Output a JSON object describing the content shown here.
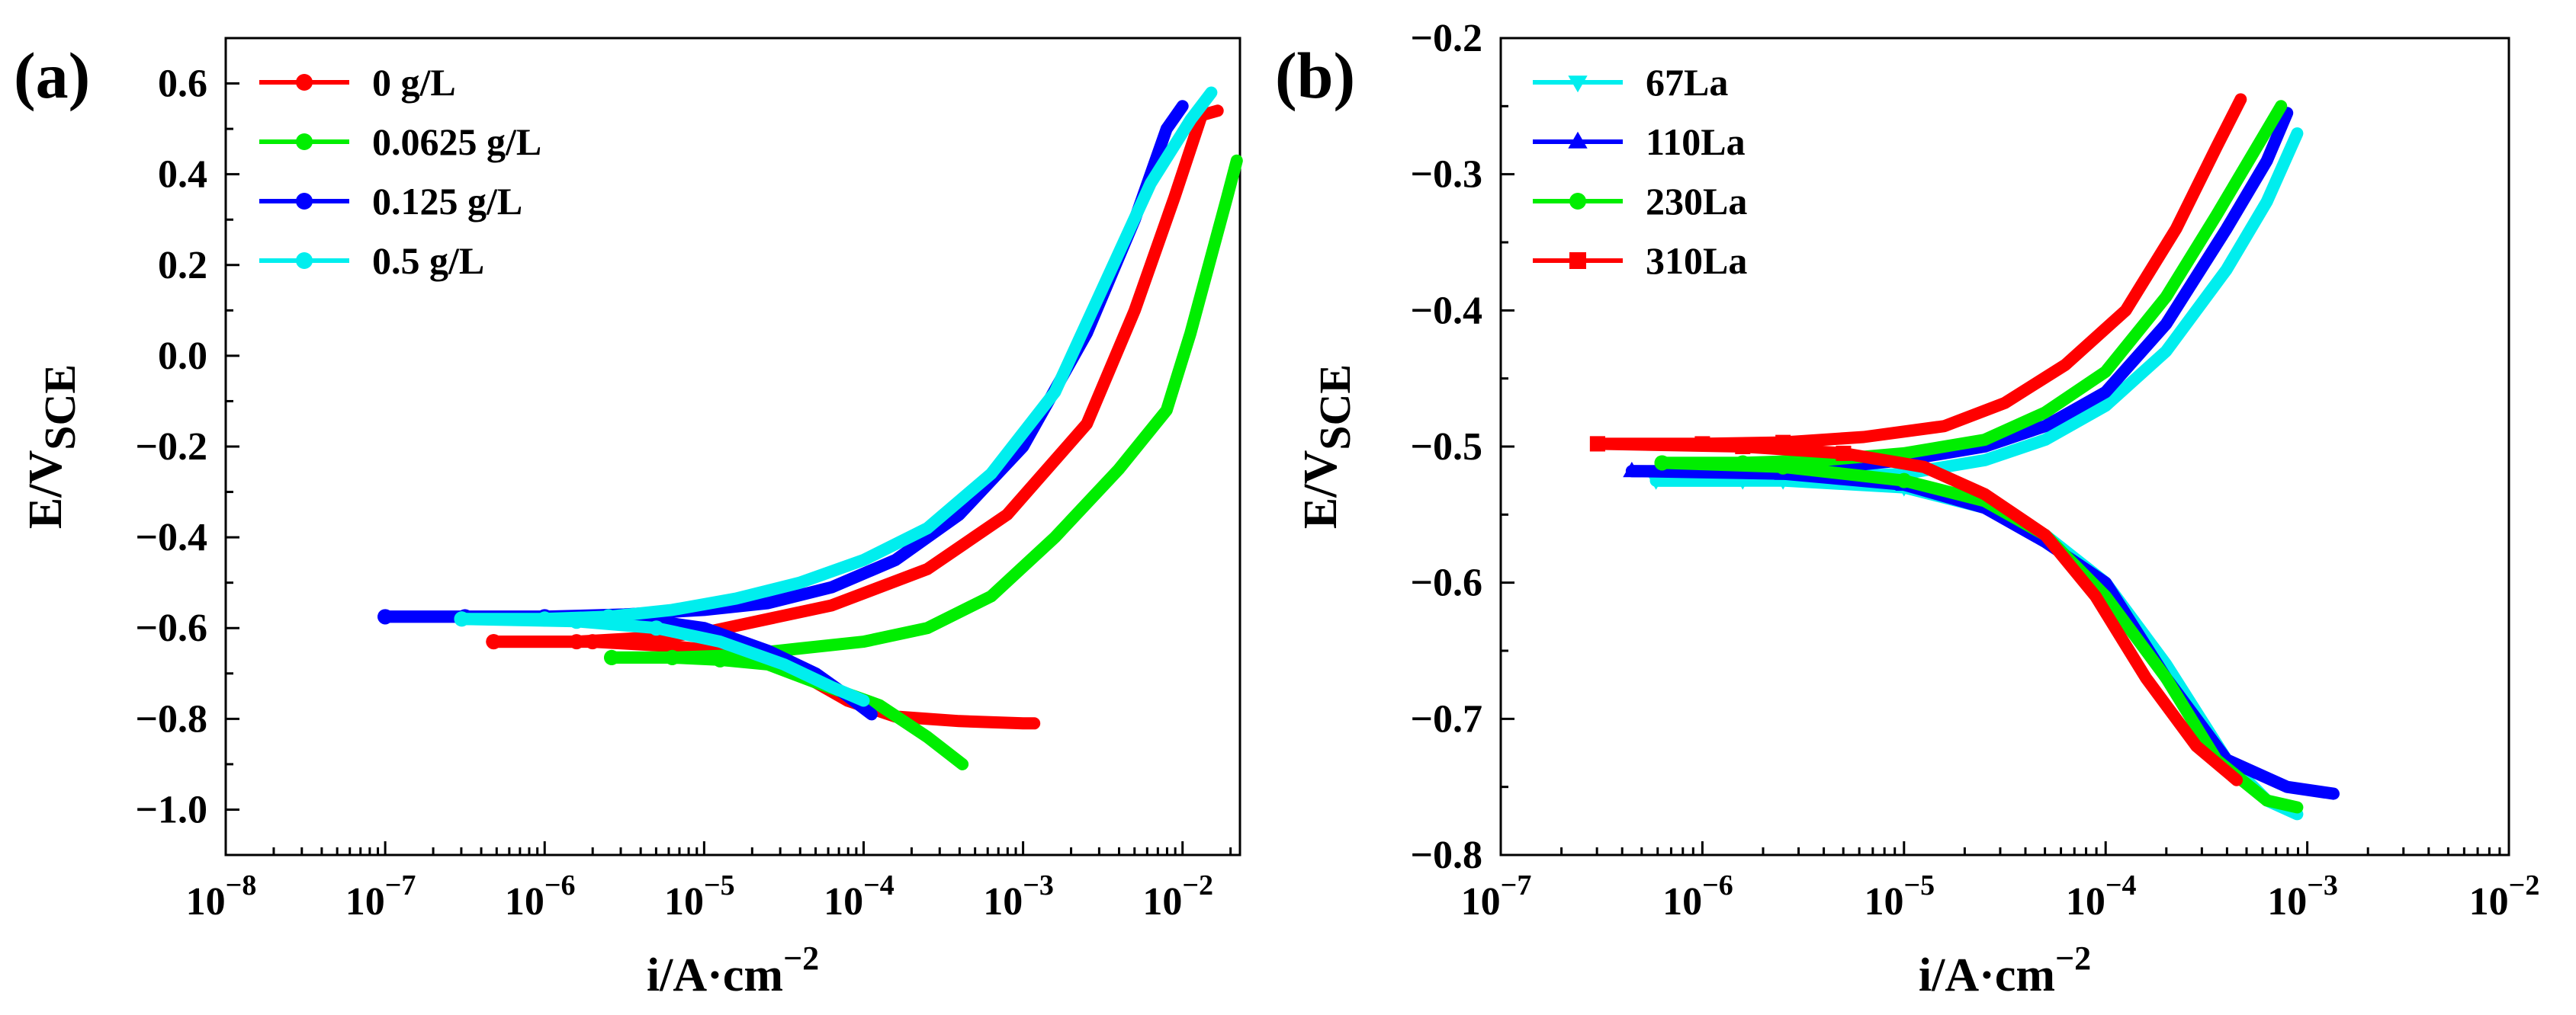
{
  "chart_data": [
    {
      "type": "line",
      "panel_label": "(a)",
      "xlabel_main": "i/A·cm",
      "xlabel_sup": "−2",
      "ylabel_main": "E/V",
      "ylabel_sub": "SCE",
      "xscale": "log",
      "xlim_exp": [
        -8,
        -1.64
      ],
      "ylim": [
        -1.1,
        0.7
      ],
      "xticks": [
        {
          "exp": -8,
          "base": "10",
          "sup": "−8"
        },
        {
          "exp": -7,
          "base": "10",
          "sup": "−7"
        },
        {
          "exp": -6,
          "base": "10",
          "sup": "−6"
        },
        {
          "exp": -5,
          "base": "10",
          "sup": "−5"
        },
        {
          "exp": -4,
          "base": "10",
          "sup": "−4"
        },
        {
          "exp": -3,
          "base": "10",
          "sup": "−3"
        },
        {
          "exp": -2,
          "base": "10",
          "sup": "−2"
        }
      ],
      "yticks": [
        {
          "value": 0.6,
          "label": "0.6"
        },
        {
          "value": 0.4,
          "label": "0.4"
        },
        {
          "value": 0.2,
          "label": "0.2"
        },
        {
          "value": 0.0,
          "label": "0.0"
        },
        {
          "value": -0.2,
          "label": "−0.2"
        },
        {
          "value": -0.4,
          "label": "−0.4"
        },
        {
          "value": -0.6,
          "label": "−0.6"
        },
        {
          "value": -0.8,
          "label": "−0.8"
        },
        {
          "value": -1.0,
          "label": "−1.0"
        }
      ],
      "legend_position": "top-left",
      "series": [
        {
          "name": "0 g/L",
          "color": "#ff0000",
          "marker": "circle",
          "anodic": [
            [
              -6.32,
              -0.63
            ],
            [
              -5.8,
              -0.63
            ],
            [
              -5.3,
              -0.62
            ],
            [
              -5.0,
              -0.61
            ],
            [
              -4.6,
              -0.58
            ],
            [
              -4.2,
              -0.55
            ],
            [
              -3.6,
              -0.47
            ],
            [
              -3.1,
              -0.35
            ],
            [
              -2.6,
              -0.15
            ],
            [
              -2.3,
              0.1
            ],
            [
              -2.05,
              0.35
            ],
            [
              -1.88,
              0.53
            ],
            [
              -1.78,
              0.54
            ]
          ],
          "cathodic": [
            [
              -6.32,
              -0.63
            ],
            [
              -5.7,
              -0.63
            ],
            [
              -5.2,
              -0.64
            ],
            [
              -4.8,
              -0.655
            ],
            [
              -4.4,
              -0.7
            ],
            [
              -4.1,
              -0.76
            ],
            [
              -3.8,
              -0.795
            ],
            [
              -3.4,
              -0.805
            ],
            [
              -3.0,
              -0.81
            ],
            [
              -2.93,
              -0.81
            ]
          ]
        },
        {
          "name": "0.0625 g/L",
          "color": "#00ee00",
          "marker": "circle",
          "anodic": [
            [
              -5.58,
              -0.665
            ],
            [
              -5.2,
              -0.665
            ],
            [
              -4.8,
              -0.66
            ],
            [
              -4.4,
              -0.645
            ],
            [
              -4.0,
              -0.63
            ],
            [
              -3.6,
              -0.6
            ],
            [
              -3.2,
              -0.53
            ],
            [
              -2.8,
              -0.4
            ],
            [
              -2.4,
              -0.25
            ],
            [
              -2.1,
              -0.12
            ],
            [
              -1.95,
              0.05
            ],
            [
              -1.82,
              0.22
            ],
            [
              -1.72,
              0.35
            ],
            [
              -1.66,
              0.43
            ]
          ],
          "cathodic": [
            [
              -5.58,
              -0.665
            ],
            [
              -5.2,
              -0.665
            ],
            [
              -4.9,
              -0.67
            ],
            [
              -4.6,
              -0.68
            ],
            [
              -4.3,
              -0.72
            ],
            [
              -3.9,
              -0.77
            ],
            [
              -3.6,
              -0.84
            ],
            [
              -3.38,
              -0.9
            ]
          ]
        },
        {
          "name": "0.125 g/L",
          "color": "#0000ff",
          "marker": "circle",
          "anodic": [
            [
              -7.0,
              -0.575
            ],
            [
              -6.5,
              -0.575
            ],
            [
              -6.0,
              -0.575
            ],
            [
              -5.5,
              -0.57
            ],
            [
              -5.0,
              -0.56
            ],
            [
              -4.6,
              -0.545
            ],
            [
              -4.2,
              -0.51
            ],
            [
              -3.8,
              -0.45
            ],
            [
              -3.4,
              -0.35
            ],
            [
              -3.0,
              -0.2
            ],
            [
              -2.6,
              0.05
            ],
            [
              -2.3,
              0.3
            ],
            [
              -2.1,
              0.5
            ],
            [
              -2.0,
              0.55
            ]
          ],
          "cathodic": [
            [
              -7.0,
              -0.575
            ],
            [
              -6.0,
              -0.575
            ],
            [
              -5.4,
              -0.58
            ],
            [
              -5.0,
              -0.6
            ],
            [
              -4.6,
              -0.65
            ],
            [
              -4.3,
              -0.7
            ],
            [
              -4.1,
              -0.75
            ],
            [
              -3.95,
              -0.79
            ]
          ]
        },
        {
          "name": "0.5 g/L",
          "color": "#00eeee",
          "marker": "circle",
          "anodic": [
            [
              -6.52,
              -0.58
            ],
            [
              -6.0,
              -0.58
            ],
            [
              -5.6,
              -0.575
            ],
            [
              -5.2,
              -0.56
            ],
            [
              -4.8,
              -0.535
            ],
            [
              -4.4,
              -0.5
            ],
            [
              -4.0,
              -0.45
            ],
            [
              -3.6,
              -0.38
            ],
            [
              -3.2,
              -0.26
            ],
            [
              -2.8,
              -0.08
            ],
            [
              -2.5,
              0.15
            ],
            [
              -2.2,
              0.38
            ],
            [
              -1.95,
              0.52
            ],
            [
              -1.82,
              0.58
            ]
          ],
          "cathodic": [
            [
              -6.52,
              -0.58
            ],
            [
              -5.8,
              -0.585
            ],
            [
              -5.3,
              -0.6
            ],
            [
              -4.9,
              -0.63
            ],
            [
              -4.5,
              -0.68
            ],
            [
              -4.2,
              -0.73
            ],
            [
              -4.0,
              -0.76
            ]
          ]
        }
      ]
    },
    {
      "type": "line",
      "panel_label": "(b)",
      "xlabel_main": "i/A·cm",
      "xlabel_sup": "−2",
      "ylabel_main": "E/V",
      "ylabel_sub": "SCE",
      "xscale": "log",
      "xlim_exp": [
        -7,
        -2
      ],
      "ylim": [
        -0.8,
        -0.2
      ],
      "xticks": [
        {
          "exp": -7,
          "base": "10",
          "sup": "−7"
        },
        {
          "exp": -6,
          "base": "10",
          "sup": "−6"
        },
        {
          "exp": -5,
          "base": "10",
          "sup": "−5"
        },
        {
          "exp": -4,
          "base": "10",
          "sup": "−4"
        },
        {
          "exp": -3,
          "base": "10",
          "sup": "−3"
        },
        {
          "exp": -2,
          "base": "10",
          "sup": "−2"
        }
      ],
      "yticks": [
        {
          "value": -0.2,
          "label": "−0.2"
        },
        {
          "value": -0.3,
          "label": "−0.3"
        },
        {
          "value": -0.4,
          "label": "−0.4"
        },
        {
          "value": -0.5,
          "label": "−0.5"
        },
        {
          "value": -0.6,
          "label": "−0.6"
        },
        {
          "value": -0.7,
          "label": "−0.7"
        },
        {
          "value": -0.8,
          "label": "−0.8"
        }
      ],
      "legend_position": "top-left",
      "series": [
        {
          "name": "67La",
          "color": "#00eeee",
          "marker": "triangle-down",
          "anodic": [
            [
              -6.23,
              -0.525
            ],
            [
              -5.8,
              -0.525
            ],
            [
              -5.4,
              -0.523
            ],
            [
              -5.0,
              -0.52
            ],
            [
              -4.6,
              -0.51
            ],
            [
              -4.3,
              -0.495
            ],
            [
              -4.0,
              -0.47
            ],
            [
              -3.7,
              -0.43
            ],
            [
              -3.4,
              -0.37
            ],
            [
              -3.2,
              -0.32
            ],
            [
              -3.05,
              -0.27
            ]
          ],
          "cathodic": [
            [
              -6.23,
              -0.525
            ],
            [
              -5.6,
              -0.525
            ],
            [
              -5.0,
              -0.53
            ],
            [
              -4.6,
              -0.545
            ],
            [
              -4.3,
              -0.565
            ],
            [
              -4.0,
              -0.6
            ],
            [
              -3.7,
              -0.66
            ],
            [
              -3.4,
              -0.73
            ],
            [
              -3.2,
              -0.76
            ],
            [
              -3.05,
              -0.77
            ]
          ]
        },
        {
          "name": "110La",
          "color": "#0000ff",
          "marker": "triangle-up",
          "anodic": [
            [
              -6.35,
              -0.518
            ],
            [
              -5.8,
              -0.518
            ],
            [
              -5.4,
              -0.516
            ],
            [
              -5.0,
              -0.51
            ],
            [
              -4.6,
              -0.5
            ],
            [
              -4.3,
              -0.485
            ],
            [
              -4.0,
              -0.46
            ],
            [
              -3.7,
              -0.41
            ],
            [
              -3.4,
              -0.34
            ],
            [
              -3.2,
              -0.29
            ],
            [
              -3.1,
              -0.255
            ]
          ],
          "cathodic": [
            [
              -6.35,
              -0.518
            ],
            [
              -5.6,
              -0.52
            ],
            [
              -5.0,
              -0.528
            ],
            [
              -4.6,
              -0.545
            ],
            [
              -4.3,
              -0.57
            ],
            [
              -4.0,
              -0.6
            ],
            [
              -3.7,
              -0.67
            ],
            [
              -3.4,
              -0.73
            ],
            [
              -3.1,
              -0.75
            ],
            [
              -2.87,
              -0.755
            ]
          ]
        },
        {
          "name": "230La",
          "color": "#00ee00",
          "marker": "circle",
          "anodic": [
            [
              -6.2,
              -0.512
            ],
            [
              -5.8,
              -0.512
            ],
            [
              -5.4,
              -0.51
            ],
            [
              -5.0,
              -0.505
            ],
            [
              -4.6,
              -0.495
            ],
            [
              -4.3,
              -0.475
            ],
            [
              -4.0,
              -0.445
            ],
            [
              -3.7,
              -0.39
            ],
            [
              -3.45,
              -0.33
            ],
            [
              -3.25,
              -0.28
            ],
            [
              -3.13,
              -0.25
            ]
          ],
          "cathodic": [
            [
              -6.2,
              -0.512
            ],
            [
              -5.6,
              -0.515
            ],
            [
              -5.0,
              -0.525
            ],
            [
              -4.6,
              -0.54
            ],
            [
              -4.3,
              -0.565
            ],
            [
              -4.0,
              -0.61
            ],
            [
              -3.7,
              -0.67
            ],
            [
              -3.45,
              -0.73
            ],
            [
              -3.2,
              -0.76
            ],
            [
              -3.05,
              -0.765
            ]
          ]
        },
        {
          "name": "310La",
          "color": "#ff0000",
          "marker": "square",
          "anodic": [
            [
              -6.52,
              -0.498
            ],
            [
              -6.0,
              -0.498
            ],
            [
              -5.6,
              -0.497
            ],
            [
              -5.2,
              -0.493
            ],
            [
              -4.8,
              -0.485
            ],
            [
              -4.5,
              -0.468
            ],
            [
              -4.2,
              -0.44
            ],
            [
              -3.9,
              -0.4
            ],
            [
              -3.65,
              -0.34
            ],
            [
              -3.45,
              -0.28
            ],
            [
              -3.33,
              -0.245
            ]
          ],
          "cathodic": [
            [
              -6.52,
              -0.498
            ],
            [
              -5.8,
              -0.5
            ],
            [
              -5.3,
              -0.505
            ],
            [
              -4.9,
              -0.515
            ],
            [
              -4.6,
              -0.535
            ],
            [
              -4.3,
              -0.565
            ],
            [
              -4.05,
              -0.61
            ],
            [
              -3.8,
              -0.67
            ],
            [
              -3.55,
              -0.72
            ],
            [
              -3.35,
              -0.745
            ]
          ]
        }
      ]
    }
  ]
}
